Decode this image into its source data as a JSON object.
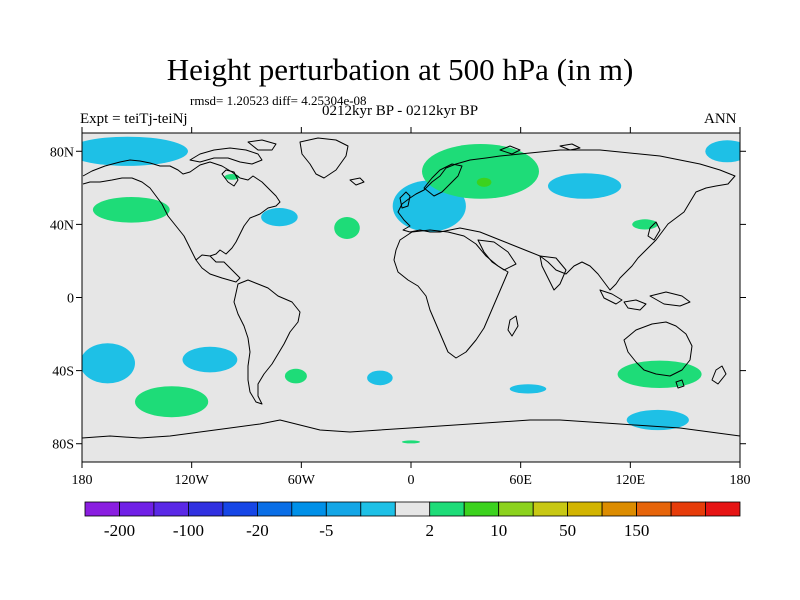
{
  "title": "Height perturbation at 500 hPa (in m)",
  "stats": "rmsd= 1.20523 diff= 4.25304e-08",
  "subtitle": "0212kyr BP - 0212kyr BP",
  "expt": "Expt = teiTj-teiNj",
  "season": "ANN",
  "map": {
    "background": "#e6e6e6",
    "projection": "cylindrical-equidistant",
    "lon_range": [
      -180,
      180
    ],
    "lat_range": [
      -90,
      90
    ],
    "x_ticks": [
      {
        "lon": -180,
        "label": "180"
      },
      {
        "lon": -120,
        "label": "120W"
      },
      {
        "lon": -60,
        "label": "60W"
      },
      {
        "lon": 0,
        "label": "0"
      },
      {
        "lon": 60,
        "label": "60E"
      },
      {
        "lon": 120,
        "label": "120E"
      },
      {
        "lon": 180,
        "label": "180"
      }
    ],
    "y_ticks": [
      {
        "lat": 80,
        "label": "80N"
      },
      {
        "lat": 40,
        "label": "40N"
      },
      {
        "lat": 0,
        "label": "0"
      },
      {
        "lat": -40,
        "label": "40S"
      },
      {
        "lat": -80,
        "label": "80S"
      }
    ],
    "anomaly_regions": [
      {
        "id": "north-pacific-arctic-negative",
        "lon": -155,
        "lat": 80,
        "rlon": 33,
        "rlat": 8,
        "level": -5
      },
      {
        "id": "northeast-pacific-positive",
        "lon": -153,
        "lat": 48,
        "rlon": 21,
        "rlat": 7,
        "level": 2
      },
      {
        "id": "alaska-small-positive",
        "lon": -98,
        "lat": 66,
        "rlon": 4,
        "rlat": 1.6,
        "level": 2
      },
      {
        "id": "northeast-us-negative",
        "lon": -72,
        "lat": 44,
        "rlon": 10,
        "rlat": 5,
        "level": -5
      },
      {
        "id": "north-atlantic-positive",
        "lon": -35,
        "lat": 38,
        "rlon": 7,
        "rlat": 6,
        "level": 2
      },
      {
        "id": "europe-negative",
        "lon": 10,
        "lat": 50,
        "rlon": 20,
        "rlat": 14,
        "level": -5
      },
      {
        "id": "russia-positive",
        "lon": 38,
        "lat": 69,
        "rlon": 32,
        "rlat": 15,
        "level": 2
      },
      {
        "id": "russia-inner-positive",
        "lon": 40,
        "lat": 63,
        "rlon": 4,
        "rlat": 2.5,
        "level": 10
      },
      {
        "id": "siberia-negative",
        "lon": 95,
        "lat": 61,
        "rlon": 20,
        "rlat": 7,
        "level": -5
      },
      {
        "id": "china-positive",
        "lon": 128,
        "lat": 40,
        "rlon": 7,
        "rlat": 2.8,
        "level": 2
      },
      {
        "id": "east-arctic-negative",
        "lon": 173,
        "lat": 80,
        "rlon": 12,
        "rlat": 6,
        "level": -5
      },
      {
        "id": "south-pacific-west-negative",
        "lon": -166,
        "lat": -36,
        "rlon": 15,
        "rlat": 11,
        "level": -5
      },
      {
        "id": "south-pacific-central-negative",
        "lon": -110,
        "lat": -34,
        "rlon": 15,
        "rlat": 7,
        "level": -5
      },
      {
        "id": "south-pacific-positive",
        "lon": -131,
        "lat": -57,
        "rlon": 20,
        "rlat": 8.5,
        "level": 2
      },
      {
        "id": "argentina-positive",
        "lon": -63,
        "lat": -43,
        "rlon": 6,
        "rlat": 4,
        "level": 2
      },
      {
        "id": "south-atlantic-negative",
        "lon": -17,
        "lat": -44,
        "rlon": 7,
        "rlat": 4,
        "level": -5
      },
      {
        "id": "southern-ocean-negative",
        "lon": 64,
        "lat": -50,
        "rlon": 10,
        "rlat": 2.5,
        "level": -5
      },
      {
        "id": "australia-south-positive",
        "lon": 136,
        "lat": -42,
        "rlon": 23,
        "rlat": 7.5,
        "level": 2
      },
      {
        "id": "southern-ocean-east-negative",
        "lon": 135,
        "lat": -67,
        "rlon": 17,
        "rlat": 5.5,
        "level": -5
      },
      {
        "id": "antarctica-small-positive",
        "lon": 0,
        "lat": -79,
        "rlon": 5,
        "rlat": 0.8,
        "level": 2
      }
    ]
  },
  "colorbar": {
    "colors": [
      "#8a1ee0",
      "#7020e6",
      "#5a28e6",
      "#3030e0",
      "#1646e6",
      "#0a6ee6",
      "#0090e8",
      "#14a6e6",
      "#1ec0e6",
      "#e6e6e6",
      "#1edc78",
      "#3cd21e",
      "#8cd21e",
      "#c8c814",
      "#d2b400",
      "#dc8c00",
      "#e6640a",
      "#e63c0a",
      "#e61414"
    ],
    "labels": [
      {
        "after_box": 1,
        "text": "-200"
      },
      {
        "after_box": 3,
        "text": "-100"
      },
      {
        "after_box": 5,
        "text": "-20"
      },
      {
        "after_box": 7,
        "text": "-5"
      },
      {
        "after_box": 10,
        "text": "2"
      },
      {
        "after_box": 12,
        "text": "10"
      },
      {
        "after_box": 14,
        "text": "50"
      },
      {
        "after_box": 16,
        "text": "150"
      }
    ],
    "level_colors": {
      "-5": "#1ec0e6",
      "2": "#1edc78",
      "10": "#3cd21e"
    }
  }
}
